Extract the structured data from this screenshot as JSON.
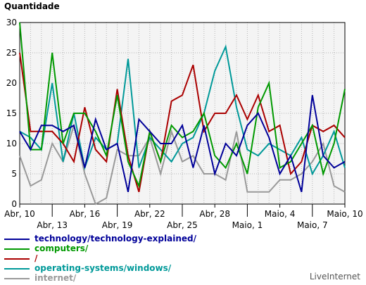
{
  "chart_data": {
    "type": "line",
    "ylabel": "Quantidade",
    "ylim": [
      0,
      30
    ],
    "yticks": [
      0,
      5,
      10,
      15,
      20,
      25,
      30
    ],
    "x": [
      "Abr, 10",
      "Abr, 11",
      "Abr, 12",
      "Abr, 13",
      "Abr, 14",
      "Abr, 15",
      "Abr, 16",
      "Abr, 17",
      "Abr, 18",
      "Abr, 19",
      "Abr, 20",
      "Abr, 21",
      "Abr, 22",
      "Abr, 23",
      "Abr, 24",
      "Abr, 25",
      "Abr, 26",
      "Abr, 27",
      "Abr, 28",
      "Abr, 29",
      "Abr, 30",
      "Maio, 1",
      "Maio, 2",
      "Maio, 3",
      "Maio, 4",
      "Maio, 5",
      "Maio, 6",
      "Maio, 7",
      "Maio, 8",
      "Maio, 9",
      "Maio, 10"
    ],
    "xticks_upper": [
      "Abr, 10",
      "Abr, 16",
      "Abr, 22",
      "Abr, 28",
      "Maio, 4",
      "Maio, 10"
    ],
    "xticks_lower": [
      "Abr, 13",
      "Abr, 19",
      "Abr, 25",
      "Maio, 1",
      "Maio, 7"
    ],
    "grid": true,
    "legend_position": "bottom-left",
    "series": [
      {
        "name": "technology/technology-explained/",
        "color": "#000099",
        "values": [
          12,
          9,
          13,
          13,
          12,
          13,
          6,
          14,
          9,
          10,
          2,
          14,
          12,
          10,
          10,
          13,
          6,
          13,
          5,
          10,
          8,
          13,
          15,
          11,
          5,
          8,
          2,
          18,
          8,
          6,
          7
        ]
      },
      {
        "name": "computers/",
        "color": "#009900",
        "values": [
          30,
          9,
          9,
          25,
          10,
          15,
          15,
          12,
          8,
          18,
          7,
          3,
          12,
          7,
          13,
          11,
          12,
          15,
          8,
          6,
          10,
          5,
          16,
          20,
          6,
          7,
          10,
          13,
          5,
          10,
          19
        ]
      },
      {
        "name": "/",
        "color": "#aa0000",
        "values": [
          25,
          12,
          12,
          12,
          10,
          7,
          16,
          9,
          7,
          19,
          8,
          2,
          12,
          7,
          17,
          18,
          23,
          12,
          15,
          15,
          18,
          14,
          18,
          12,
          13,
          5,
          7,
          13,
          12,
          13,
          11
        ]
      },
      {
        "name": "operating-systems/windows/",
        "color": "#009999",
        "values": [
          12,
          11,
          9,
          20,
          7,
          15,
          6,
          11,
          9,
          10,
          24,
          6,
          11,
          9,
          7,
          10,
          11,
          15,
          22,
          26,
          16,
          9,
          8,
          10,
          9,
          8,
          11,
          5,
          8,
          12,
          6
        ]
      },
      {
        "name": "internet/",
        "color": "#999999",
        "values": [
          8,
          3,
          4,
          10,
          7,
          13,
          5,
          0,
          1,
          9,
          8,
          8,
          11,
          5,
          12,
          7,
          8,
          5,
          5,
          4,
          12,
          2,
          2,
          2,
          4,
          4,
          5,
          7,
          10,
          3,
          2
        ]
      }
    ]
  },
  "brand": "LiveInternet"
}
